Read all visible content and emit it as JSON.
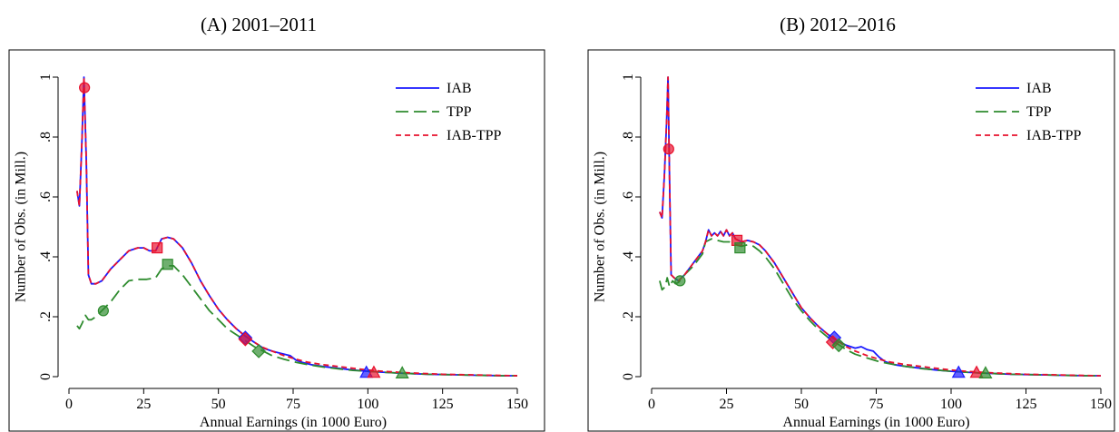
{
  "chart_data": [
    {
      "type": "line",
      "title": "(A) 2001–2011",
      "xlabel": "Annual Earnings (in 1000 Euro)",
      "ylabel": "Number of Obs. (in Mill.)",
      "xlim": [
        0,
        150
      ],
      "ylim": [
        0,
        1
      ],
      "xticks": [
        "0",
        "25",
        "50",
        "75",
        "100",
        "125",
        "150"
      ],
      "yticks": [
        "0",
        ".2",
        ".4",
        ".6",
        ".8",
        "1"
      ],
      "grid": false,
      "legend": "top-right",
      "colors": {
        "IAB": "#1a1aff",
        "TPP": "#2e8b2e",
        "IAB-TPP": "#e8112d"
      },
      "series": [
        {
          "name": "IAB",
          "style": "solid",
          "x": [
            2.7,
            3.5,
            4.3,
            5.0,
            5.8,
            6.5,
            7.5,
            9,
            11,
            14,
            17,
            20,
            23,
            25,
            27,
            29,
            31,
            33,
            35,
            38,
            41,
            44,
            47,
            50,
            53,
            56,
            59,
            62,
            65,
            68,
            70,
            72,
            74,
            76,
            78,
            81,
            85,
            90,
            95,
            100,
            105,
            110,
            115,
            120,
            125,
            130,
            135,
            140,
            145,
            150
          ],
          "y": [
            0.62,
            0.57,
            0.78,
            1.0,
            0.72,
            0.34,
            0.31,
            0.31,
            0.32,
            0.36,
            0.39,
            0.42,
            0.43,
            0.43,
            0.42,
            0.42,
            0.46,
            0.465,
            0.46,
            0.43,
            0.38,
            0.32,
            0.27,
            0.225,
            0.19,
            0.16,
            0.135,
            0.115,
            0.095,
            0.085,
            0.08,
            0.075,
            0.07,
            0.055,
            0.048,
            0.04,
            0.034,
            0.028,
            0.022,
            0.018,
            0.015,
            0.012,
            0.01,
            0.008,
            0.007,
            0.006,
            0.005,
            0.004,
            0.003,
            0.003
          ]
        },
        {
          "name": "TPP",
          "style": "long-dash",
          "x": [
            2.7,
            3.5,
            4.5,
            5.5,
            6.5,
            7.5,
            9,
            11,
            14,
            17,
            20,
            23,
            26,
            29,
            31,
            33,
            35,
            38,
            41,
            44,
            47,
            50,
            53,
            56,
            59,
            62,
            65,
            68,
            72,
            76,
            80,
            85,
            90,
            95,
            100,
            105,
            110,
            115,
            120,
            125,
            130,
            135,
            140,
            145,
            150
          ],
          "y": [
            0.17,
            0.16,
            0.18,
            0.205,
            0.19,
            0.19,
            0.2,
            0.22,
            0.25,
            0.29,
            0.32,
            0.325,
            0.325,
            0.33,
            0.36,
            0.37,
            0.37,
            0.34,
            0.3,
            0.26,
            0.22,
            0.19,
            0.16,
            0.14,
            0.12,
            0.1,
            0.085,
            0.07,
            0.058,
            0.048,
            0.04,
            0.032,
            0.026,
            0.021,
            0.018,
            0.015,
            0.012,
            0.01,
            0.008,
            0.007,
            0.006,
            0.005,
            0.004,
            0.003,
            0.003
          ]
        },
        {
          "name": "IAB-TPP",
          "style": "short-dash",
          "x": [
            2.7,
            3.5,
            4.3,
            5.0,
            5.8,
            6.5,
            7.5,
            9,
            11,
            14,
            17,
            20,
            23,
            25,
            27,
            29,
            31,
            33,
            35,
            38,
            41,
            44,
            47,
            50,
            53,
            56,
            59,
            62,
            65,
            68,
            72,
            76,
            80,
            85,
            90,
            95,
            100,
            105,
            110,
            115,
            120,
            125,
            130,
            135,
            140,
            145,
            150
          ],
          "y": [
            0.62,
            0.57,
            0.78,
            1.0,
            0.72,
            0.34,
            0.31,
            0.31,
            0.32,
            0.36,
            0.39,
            0.42,
            0.43,
            0.43,
            0.42,
            0.42,
            0.46,
            0.465,
            0.46,
            0.43,
            0.38,
            0.32,
            0.27,
            0.225,
            0.19,
            0.16,
            0.135,
            0.115,
            0.097,
            0.085,
            0.07,
            0.058,
            0.048,
            0.04,
            0.034,
            0.028,
            0.022,
            0.018,
            0.015,
            0.012,
            0.01,
            0.008,
            0.007,
            0.006,
            0.005,
            0.004,
            0.003
          ]
        }
      ],
      "markers": [
        {
          "series": "IAB-TPP",
          "shape": "circle",
          "x": 5.2,
          "y": 0.965
        },
        {
          "series": "TPP",
          "shape": "circle",
          "x": 11.5,
          "y": 0.22
        },
        {
          "series": "IAB-TPP",
          "shape": "square",
          "x": 29.5,
          "y": 0.43
        },
        {
          "series": "TPP",
          "shape": "square",
          "x": 33,
          "y": 0.375
        },
        {
          "series": "IAB",
          "shape": "diamond",
          "x": 59,
          "y": 0.13
        },
        {
          "series": "IAB-TPP",
          "shape": "diamond",
          "x": 59,
          "y": 0.125
        },
        {
          "series": "TPP",
          "shape": "diamond",
          "x": 63.5,
          "y": 0.085
        },
        {
          "series": "IAB",
          "shape": "triangle",
          "x": 99.5,
          "y": 0.013
        },
        {
          "series": "IAB-TPP",
          "shape": "triangle",
          "x": 102,
          "y": 0.013
        },
        {
          "series": "TPP",
          "shape": "triangle",
          "x": 111.5,
          "y": 0.011
        }
      ]
    },
    {
      "type": "line",
      "title": "(B) 2012–2016",
      "xlabel": "Annual Earnings (in 1000 Euro)",
      "ylabel": "Number of Obs. (in Mill.)",
      "xlim": [
        0,
        150
      ],
      "ylim": [
        0,
        1
      ],
      "xticks": [
        "0",
        "25",
        "50",
        "75",
        "100",
        "125",
        "150"
      ],
      "yticks": [
        "0",
        ".2",
        ".4",
        ".6",
        ".8",
        "1"
      ],
      "grid": false,
      "legend": "top-right",
      "colors": {
        "IAB": "#1a1aff",
        "TPP": "#2e8b2e",
        "IAB-TPP": "#e8112d"
      },
      "series": [
        {
          "name": "IAB",
          "style": "solid",
          "x": [
            2.7,
            3.5,
            4.3,
            5.0,
            5.5,
            6.0,
            6.5,
            7.5,
            9,
            11,
            14,
            17,
            18,
            19,
            20,
            21,
            22,
            23,
            24,
            25,
            26,
            27,
            28,
            30,
            32,
            34,
            36,
            38,
            41,
            44,
            47,
            50,
            53,
            56,
            59,
            62,
            65,
            68,
            70,
            72,
            74,
            76,
            78,
            81,
            85,
            90,
            95,
            100,
            105,
            110,
            115,
            120,
            125,
            130,
            135,
            140,
            145,
            150
          ],
          "y": [
            0.55,
            0.53,
            0.68,
            0.85,
            1.0,
            0.65,
            0.34,
            0.33,
            0.32,
            0.34,
            0.38,
            0.42,
            0.45,
            0.49,
            0.47,
            0.48,
            0.47,
            0.485,
            0.47,
            0.49,
            0.47,
            0.48,
            0.46,
            0.45,
            0.455,
            0.45,
            0.44,
            0.42,
            0.38,
            0.33,
            0.28,
            0.23,
            0.195,
            0.165,
            0.14,
            0.12,
            0.105,
            0.095,
            0.1,
            0.09,
            0.085,
            0.065,
            0.05,
            0.04,
            0.034,
            0.028,
            0.022,
            0.018,
            0.015,
            0.012,
            0.01,
            0.008,
            0.007,
            0.006,
            0.005,
            0.004,
            0.003,
            0.003
          ]
        },
        {
          "name": "TPP",
          "style": "long-dash",
          "x": [
            2.7,
            3.5,
            4.5,
            5.2,
            6.0,
            7.0,
            8.0,
            9,
            11,
            14,
            17,
            18,
            20,
            22,
            24,
            26,
            28,
            30,
            32,
            34,
            36,
            38,
            41,
            44,
            47,
            50,
            53,
            56,
            59,
            62,
            65,
            68,
            72,
            76,
            80,
            85,
            90,
            95,
            100,
            105,
            110,
            115,
            120,
            125,
            130,
            135,
            140,
            145,
            150
          ],
          "y": [
            0.32,
            0.29,
            0.3,
            0.33,
            0.3,
            0.32,
            0.31,
            0.315,
            0.34,
            0.37,
            0.41,
            0.45,
            0.46,
            0.455,
            0.45,
            0.45,
            0.44,
            0.435,
            0.44,
            0.435,
            0.42,
            0.4,
            0.36,
            0.31,
            0.26,
            0.22,
            0.185,
            0.155,
            0.13,
            0.11,
            0.09,
            0.075,
            0.062,
            0.05,
            0.042,
            0.034,
            0.027,
            0.022,
            0.018,
            0.015,
            0.012,
            0.01,
            0.008,
            0.007,
            0.006,
            0.005,
            0.004,
            0.003,
            0.003
          ]
        },
        {
          "name": "IAB-TPP",
          "style": "short-dash",
          "x": [
            2.7,
            3.5,
            4.3,
            5.0,
            5.5,
            6.0,
            6.5,
            7.5,
            9,
            11,
            14,
            17,
            18,
            19,
            20,
            21,
            22,
            23,
            24,
            25,
            26,
            27,
            28,
            30,
            32,
            34,
            36,
            38,
            41,
            44,
            47,
            50,
            53,
            56,
            59,
            62,
            65,
            68,
            72,
            76,
            80,
            85,
            90,
            95,
            100,
            105,
            110,
            115,
            120,
            125,
            130,
            135,
            140,
            145,
            150
          ],
          "y": [
            0.55,
            0.53,
            0.68,
            0.85,
            1.0,
            0.65,
            0.34,
            0.33,
            0.32,
            0.34,
            0.38,
            0.42,
            0.45,
            0.49,
            0.47,
            0.48,
            0.47,
            0.485,
            0.47,
            0.49,
            0.47,
            0.48,
            0.46,
            0.45,
            0.455,
            0.45,
            0.44,
            0.42,
            0.38,
            0.33,
            0.28,
            0.23,
            0.195,
            0.165,
            0.14,
            0.12,
            0.1,
            0.085,
            0.07,
            0.058,
            0.048,
            0.04,
            0.034,
            0.028,
            0.022,
            0.018,
            0.015,
            0.012,
            0.01,
            0.008,
            0.007,
            0.006,
            0.005,
            0.004,
            0.003
          ]
        }
      ],
      "markers": [
        {
          "series": "IAB-TPP",
          "shape": "circle",
          "x": 5.7,
          "y": 0.76
        },
        {
          "series": "TPP",
          "shape": "circle",
          "x": 9.5,
          "y": 0.32
        },
        {
          "series": "IAB-TPP",
          "shape": "square",
          "x": 28.5,
          "y": 0.455
        },
        {
          "series": "TPP",
          "shape": "square",
          "x": 29.5,
          "y": 0.43
        },
        {
          "series": "IAB",
          "shape": "diamond",
          "x": 61,
          "y": 0.13
        },
        {
          "series": "IAB-TPP",
          "shape": "diamond",
          "x": 60.5,
          "y": 0.115
        },
        {
          "series": "TPP",
          "shape": "diamond",
          "x": 62.5,
          "y": 0.105
        },
        {
          "series": "IAB",
          "shape": "triangle",
          "x": 102.5,
          "y": 0.013
        },
        {
          "series": "IAB-TPP",
          "shape": "triangle",
          "x": 108.5,
          "y": 0.013
        },
        {
          "series": "TPP",
          "shape": "triangle",
          "x": 111.5,
          "y": 0.011
        }
      ]
    }
  ]
}
